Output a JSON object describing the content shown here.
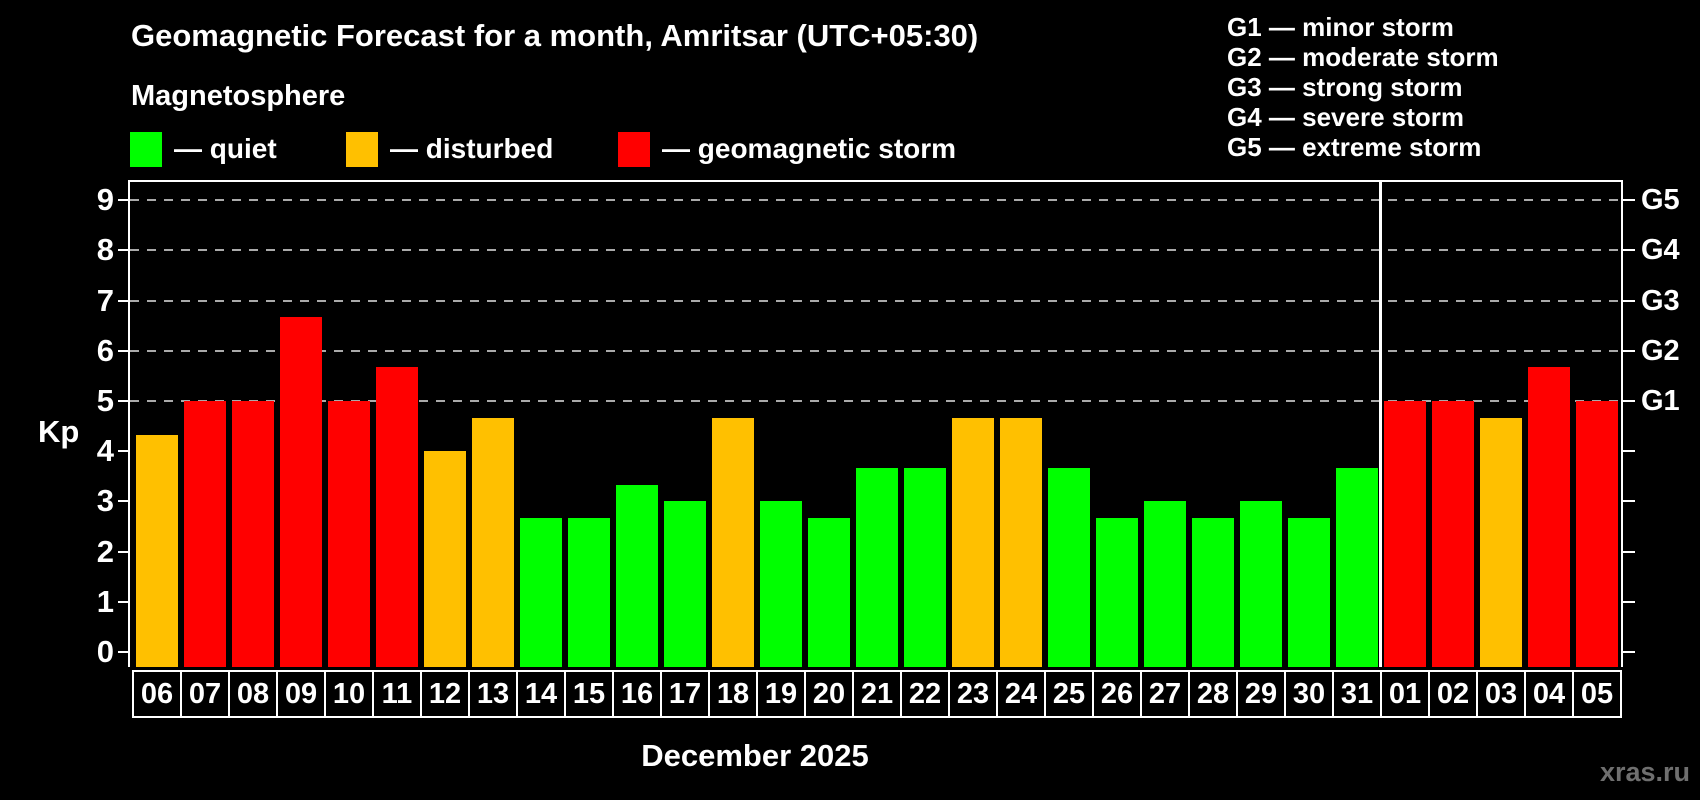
{
  "header": {
    "title": "Geomagnetic Forecast for a month, Amritsar (UTC+05:30)",
    "subtitle": "Magnetosphere"
  },
  "legend": {
    "quiet": "— quiet",
    "disturbed": "— disturbed",
    "storm": "— geomagnetic storm"
  },
  "g_legend": [
    "G1 — minor storm",
    "G2 — moderate storm",
    "G3 — strong storm",
    "G4 — severe storm",
    "G5 — extreme storm"
  ],
  "colors": {
    "quiet": "#00ff00",
    "disturbed": "#ffc000",
    "storm": "#ff0000",
    "grid": "#aaaaaa",
    "axis": "#ffffff",
    "watermark": "#6f6f6f"
  },
  "axis": {
    "ylabel": "Kp",
    "y_ticks": [
      "0",
      "1",
      "2",
      "3",
      "4",
      "5",
      "6",
      "7",
      "8",
      "9"
    ],
    "right_labels": [
      {
        "level": 5,
        "label": "G1"
      },
      {
        "level": 6,
        "label": "G2"
      },
      {
        "level": 7,
        "label": "G3"
      },
      {
        "level": 8,
        "label": "G4"
      },
      {
        "level": 9,
        "label": "G5"
      }
    ]
  },
  "footer": {
    "month_label": "December 2025",
    "watermark": "xras.ru"
  },
  "chart_data": {
    "type": "bar",
    "title": "Geomagnetic Forecast for a month, Amritsar (UTC+05:30)",
    "subtitle": "Magnetosphere",
    "xlabel": "December 2025",
    "ylabel": "Kp",
    "ylim": [
      0,
      9.4
    ],
    "grid": "dashed horizontal at Kp 5-9 only",
    "legend_position": "top",
    "categories": [
      "06",
      "07",
      "08",
      "09",
      "10",
      "11",
      "12",
      "13",
      "14",
      "15",
      "16",
      "17",
      "18",
      "19",
      "20",
      "21",
      "22",
      "23",
      "24",
      "25",
      "26",
      "27",
      "28",
      "29",
      "30",
      "31",
      "01",
      "02",
      "03",
      "04",
      "05"
    ],
    "values": [
      4.33,
      5,
      5,
      6.67,
      5,
      5.67,
      4,
      4.67,
      2.67,
      2.67,
      3.33,
      3,
      4.67,
      3,
      2.67,
      3.67,
      3.67,
      4.67,
      4.67,
      3.67,
      2.67,
      3,
      2.67,
      3,
      2.67,
      3.67,
      5,
      5,
      4.67,
      5.67,
      5
    ],
    "statuses": [
      "disturbed",
      "storm",
      "storm",
      "storm",
      "storm",
      "storm",
      "disturbed",
      "disturbed",
      "quiet",
      "quiet",
      "quiet",
      "quiet",
      "disturbed",
      "quiet",
      "quiet",
      "quiet",
      "quiet",
      "disturbed",
      "disturbed",
      "quiet",
      "quiet",
      "quiet",
      "quiet",
      "quiet",
      "quiet",
      "quiet",
      "storm",
      "storm",
      "disturbed",
      "storm",
      "storm"
    ],
    "grid_levels": [
      5,
      6,
      7,
      8,
      9
    ],
    "y_tick_levels": [
      0,
      1,
      2,
      3,
      4,
      5,
      6,
      7,
      8,
      9
    ],
    "separator_after_category": "31"
  }
}
